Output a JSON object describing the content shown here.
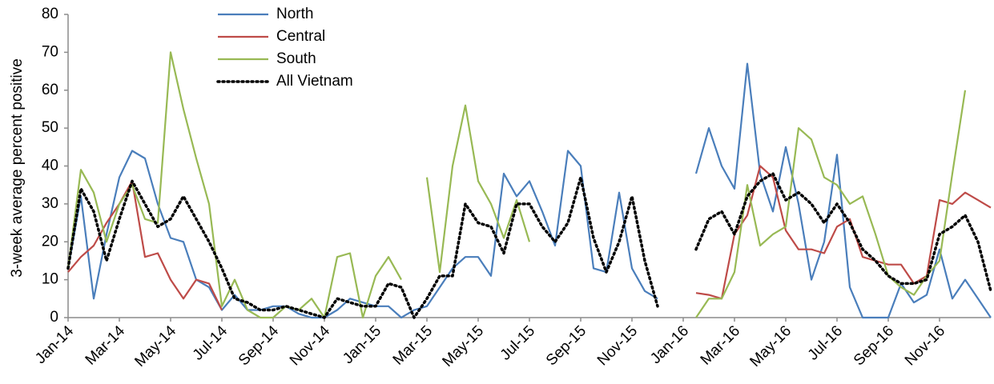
{
  "chart_data": {
    "type": "line",
    "y_label": "3-week average percent positive",
    "categories": [
      "Jan-14",
      null,
      null,
      null,
      "Mar-14",
      null,
      null,
      null,
      "May-14",
      null,
      null,
      null,
      "Jul-14",
      null,
      null,
      null,
      "Sep-14",
      null,
      null,
      null,
      "Nov-14",
      null,
      null,
      null,
      "Jan-15",
      null,
      null,
      null,
      "Mar-15",
      null,
      null,
      null,
      "May-15",
      null,
      null,
      null,
      "Jul-15",
      null,
      null,
      null,
      "Sep-15",
      null,
      null,
      null,
      "Nov-15",
      null,
      null,
      null,
      "Jan-16",
      null,
      null,
      null,
      "Mar-16",
      null,
      null,
      null,
      "May-16",
      null,
      null,
      null,
      "Jul-16",
      null,
      null,
      null,
      "Sep-16",
      null,
      null,
      null,
      "Nov-16",
      null,
      null,
      null,
      null
    ],
    "series": [
      {
        "name": "North",
        "color": "#4a7ebb",
        "style": "solid",
        "values": [
          13,
          32,
          5,
          22,
          37,
          44,
          42,
          30,
          21,
          20,
          10,
          8,
          2,
          6,
          2,
          2,
          3,
          3,
          1,
          0,
          0,
          2,
          5,
          4,
          3,
          3,
          0,
          2,
          3,
          8,
          13,
          16,
          16,
          11,
          38,
          32,
          36,
          28,
          19,
          44,
          40,
          13,
          12,
          33,
          13,
          7,
          5,
          null,
          null,
          38,
          50,
          40,
          34,
          67,
          38,
          28,
          45,
          30,
          10,
          20,
          43,
          8,
          0,
          0,
          0,
          9,
          4,
          6,
          18,
          5,
          10,
          5,
          0
        ]
      },
      {
        "name": "Central",
        "color": "#be4b48",
        "style": "solid",
        "values": [
          12,
          16,
          19,
          25,
          30,
          36,
          16,
          17,
          10,
          5,
          10,
          9,
          2,
          null,
          null,
          null,
          null,
          null,
          null,
          null,
          null,
          null,
          null,
          null,
          null,
          null,
          null,
          null,
          null,
          null,
          null,
          null,
          null,
          null,
          null,
          null,
          null,
          null,
          null,
          null,
          null,
          null,
          null,
          null,
          null,
          null,
          null,
          null,
          null,
          6.5,
          6,
          5,
          22,
          27,
          40,
          37,
          23,
          18,
          18,
          17,
          24,
          26,
          16,
          15,
          14,
          14,
          9,
          11,
          31,
          30,
          33,
          31,
          29
        ]
      },
      {
        "name": "South",
        "color": "#98b954",
        "style": "solid",
        "values": [
          13,
          39,
          33,
          20,
          30,
          35,
          26,
          25,
          70,
          55,
          42,
          30,
          3,
          10,
          2,
          0,
          0,
          3,
          2,
          5,
          0,
          16,
          17,
          0,
          11,
          16,
          10,
          null,
          37,
          12,
          40,
          56,
          36,
          30,
          21,
          31,
          20,
          null,
          null,
          null,
          null,
          null,
          null,
          null,
          null,
          null,
          null,
          null,
          null,
          0,
          5,
          5,
          12,
          35,
          19,
          22,
          24,
          50,
          47,
          37,
          35,
          30,
          32,
          22,
          11,
          8,
          6,
          11,
          15,
          38,
          60,
          null,
          null
        ]
      },
      {
        "name": "All Vietnam",
        "color": "#000000",
        "style": "dotted",
        "values": [
          13,
          34,
          28,
          15,
          26,
          36,
          30,
          24,
          26,
          32,
          26,
          20,
          13,
          5,
          4,
          2,
          2,
          3,
          2,
          1,
          0,
          5,
          4,
          3,
          3,
          9,
          8,
          0,
          5,
          11,
          11,
          30,
          25,
          24,
          17,
          30,
          30,
          24,
          20,
          25,
          37,
          21,
          12,
          20,
          32,
          15,
          3,
          null,
          null,
          18,
          26,
          28,
          22,
          32,
          36,
          38,
          31,
          33,
          30,
          25,
          30,
          25,
          18,
          15,
          11,
          9,
          9,
          10,
          22,
          24,
          27,
          20,
          7
        ]
      }
    ],
    "ylim": [
      0,
      80
    ],
    "yticks": [
      0,
      10,
      20,
      30,
      40,
      50,
      60,
      70,
      80
    ],
    "grid": false,
    "legend": "top-left"
  }
}
